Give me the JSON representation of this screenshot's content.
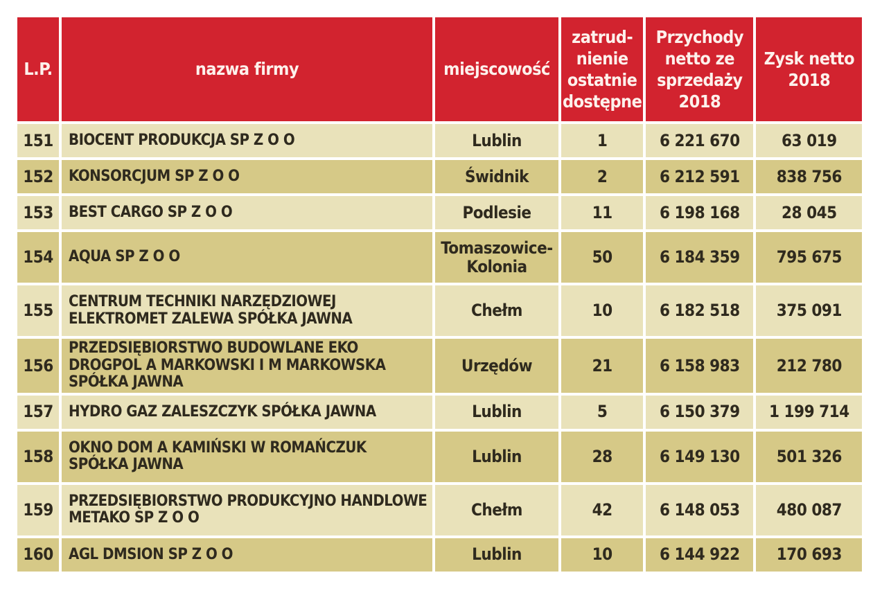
{
  "colors": {
    "header_bg": "#d2232f",
    "header_text": "#fdf1ec",
    "row_light": "#e9e2ba",
    "row_dark": "#d6c987",
    "cell_text": "#2f2a1e",
    "page_bg": "#ffffff"
  },
  "table": {
    "columns": [
      {
        "key": "lp",
        "label": "L.P."
      },
      {
        "key": "name",
        "label": "nazwa firmy"
      },
      {
        "key": "city",
        "label": "miejscowość"
      },
      {
        "key": "employment",
        "label": "zatrud-\nnienie\nostatnie\ndostępne"
      },
      {
        "key": "revenue",
        "label": "Przychody\nnetto ze\nsprzedaży\n2018"
      },
      {
        "key": "profit",
        "label": "Zysk netto\n2018"
      }
    ],
    "rows": [
      {
        "lp": "151",
        "name": "BIOCENT PRODUKCJA SP Z O O",
        "city": "Lublin",
        "employment": "1",
        "revenue": "6 221 670",
        "profit": "63 019"
      },
      {
        "lp": "152",
        "name": "KONSORCJUM SP Z O O",
        "city": "Świdnik",
        "employment": "2",
        "revenue": "6 212 591",
        "profit": "838 756"
      },
      {
        "lp": "153",
        "name": "BEST CARGO SP Z O O",
        "city": "Podlesie",
        "employment": "11",
        "revenue": "6 198 168",
        "profit": "28 045"
      },
      {
        "lp": "154",
        "name": "AQUA SP Z O O",
        "city": "Tomaszowice-Kolonia",
        "employment": "50",
        "revenue": "6 184 359",
        "profit": "795 675"
      },
      {
        "lp": "155",
        "name": "CENTRUM TECHNIKI NARZĘDZIOWEJ ELEKTROMET ZALEWA SPÓŁKA JAWNA",
        "city": "Chełm",
        "employment": "10",
        "revenue": "6 182 518",
        "profit": "375 091"
      },
      {
        "lp": "156",
        "name": "PRZEDSIĘBIORSTWO BUDOWLANE EKO DROGPOL A MARKOWSKI I M MARKOWSKA SPÓŁKA JAWNA",
        "city": "Urzędów",
        "employment": "21",
        "revenue": "6 158 983",
        "profit": "212 780"
      },
      {
        "lp": "157",
        "name": "HYDRO GAZ ZALESZCZYK SPÓŁKA JAWNA",
        "city": "Lublin",
        "employment": "5",
        "revenue": "6 150 379",
        "profit": "1 199 714"
      },
      {
        "lp": "158",
        "name": "OKNO DOM A KAMIŃSKI W ROMAŃCZUK SPÓŁKA JAWNA",
        "city": "Lublin",
        "employment": "28",
        "revenue": "6 149 130",
        "profit": "501 326"
      },
      {
        "lp": "159",
        "name": "PRZEDSIĘBIORSTWO PRODUKCYJNO HANDLOWE METAKO SP Z O O",
        "city": "Chełm",
        "employment": "42",
        "revenue": "6 148 053",
        "profit": "480 087"
      },
      {
        "lp": "160",
        "name": "AGL DMSION SP Z O O",
        "city": "Lublin",
        "employment": "10",
        "revenue": "6 144 922",
        "profit": "170 693"
      }
    ]
  }
}
